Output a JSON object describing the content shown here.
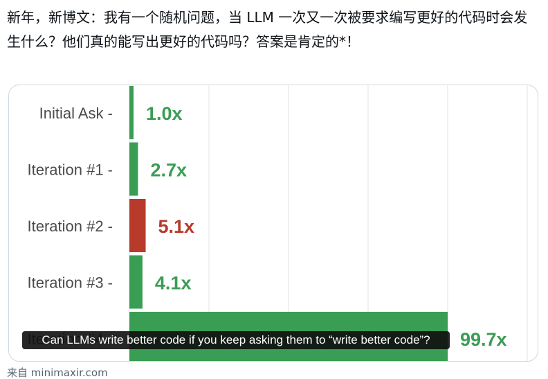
{
  "post": {
    "text": "新年，新博文：我有一个随机问题，当 LLM 一次又一次被要求编写更好的代码时会发生什么？他们真的能写出更好的代码吗？答案是肯定的*！"
  },
  "media": {
    "caption": "Can LLMs write better code if you keep asking them to “write better code”?"
  },
  "source": {
    "prefix": "来自",
    "domain": "minimaxir.com"
  },
  "chart_data": {
    "type": "bar",
    "orientation": "horizontal",
    "categories": [
      "Initial Ask",
      "Iteration #1",
      "Iteration #2",
      "Iteration #3",
      "Iteration #4"
    ],
    "values": [
      1.0,
      2.7,
      5.1,
      4.1,
      99.7
    ],
    "value_labels": [
      "1.0x",
      "2.7x",
      "5.1x",
      "4.1x",
      "99.7x"
    ],
    "colors": [
      "#3a9d54",
      "#3a9d54",
      "#b73a2a",
      "#3a9d54",
      "#3a9d54"
    ],
    "title": "",
    "xlabel": "",
    "ylabel": "",
    "grid": true
  }
}
